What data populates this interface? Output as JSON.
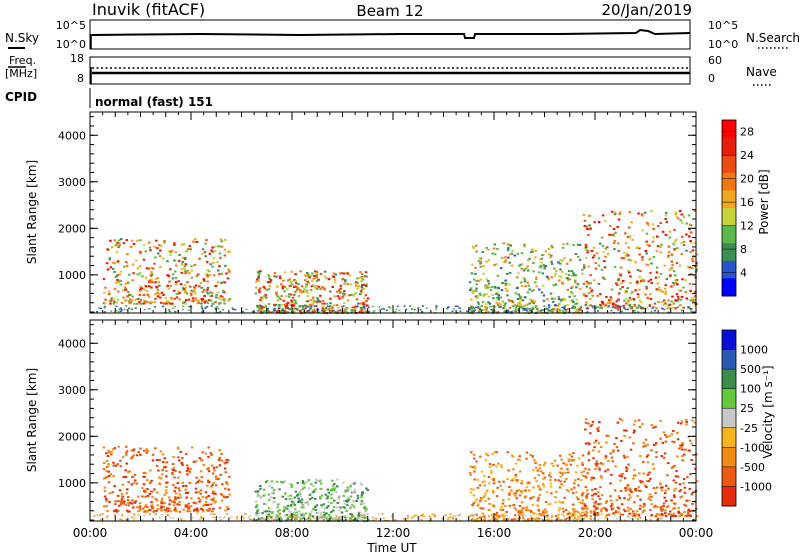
{
  "header": {
    "station": "Inuvik (fitACF)",
    "beam": "Beam 12",
    "date": "20/Jan/2019"
  },
  "params": {
    "nsky_label": "N.Sky",
    "nsky_ticks": [
      "10^5",
      "10^0"
    ],
    "nsearch_label": "N.Search",
    "nsearch_ticks": [
      "10^5",
      "10^0"
    ],
    "freq_label": "Freq.",
    "freq_unit": "[MHz]",
    "freq_ticks": [
      "18",
      "8"
    ],
    "nave_label": "Nave",
    "nave_ticks": [
      "60",
      "0"
    ],
    "cpid_label": "CPID",
    "cpid_value": "normal (fast) 151"
  },
  "colors": {
    "power": [
      "#0000ff",
      "#2a55c8",
      "#3a8f50",
      "#5cb84a",
      "#c8d23c",
      "#f2a51e",
      "#f07814",
      "#ec4a10",
      "#e61e0a",
      "#ff0000"
    ],
    "velocity": [
      "#0a10d8",
      "#2a5ab4",
      "#3c8c4c",
      "#64c83c",
      "#c8c8c8",
      "#f5b41a",
      "#f08c14",
      "#ec5a12",
      "#e62a0c"
    ]
  },
  "chart_data": [
    {
      "type": "heatmap",
      "name": "power",
      "ylabel": "Slant Range [km]",
      "yticks": [
        "1000",
        "2000",
        "3000",
        "4000"
      ],
      "ylim": [
        180,
        4500
      ],
      "colorbar_label": "Power [dB]",
      "colorbar_ticks": [
        "4",
        "8",
        "12",
        "16",
        "20",
        "24",
        "28"
      ],
      "colorbar_range": [
        0,
        30
      ],
      "echo_regions": [
        {
          "time": "00:30-05:30",
          "range_km": "400-1800",
          "peak_db": 28
        },
        {
          "time": "06:30-11:00",
          "range_km": "200-1100",
          "peak_db": 28
        },
        {
          "time": "15:00-19:30",
          "range_km": "200-1700",
          "peak_db": 20
        },
        {
          "time": "19:30-24:00",
          "range_km": "300-2400",
          "peak_db": 30
        }
      ]
    },
    {
      "type": "heatmap",
      "name": "velocity",
      "ylabel": "Slant Range [km]",
      "yticks": [
        "1000",
        "2000",
        "3000",
        "4000"
      ],
      "ylim": [
        180,
        4500
      ],
      "xlabel": "Time UT",
      "xticks": [
        "00:00",
        "04:00",
        "08:00",
        "12:00",
        "16:00",
        "20:00",
        "00:00"
      ],
      "colorbar_label": "Velocity [m s⁻¹]",
      "colorbar_ticks": [
        "1000",
        "500",
        "100",
        "25",
        "-25",
        "-100",
        "-500",
        "-1000"
      ],
      "echo_regions": [
        {
          "time": "00:30-05:30",
          "range_km": "400-1800",
          "velocity_ms": -500
        },
        {
          "time": "06:30-11:00",
          "range_km": "200-1100",
          "velocity_ms": 50
        },
        {
          "time": "15:00-19:30",
          "range_km": "200-1700",
          "velocity_ms": -100
        },
        {
          "time": "19:30-24:00",
          "range_km": "300-2400",
          "velocity_ms": -500
        }
      ]
    }
  ]
}
